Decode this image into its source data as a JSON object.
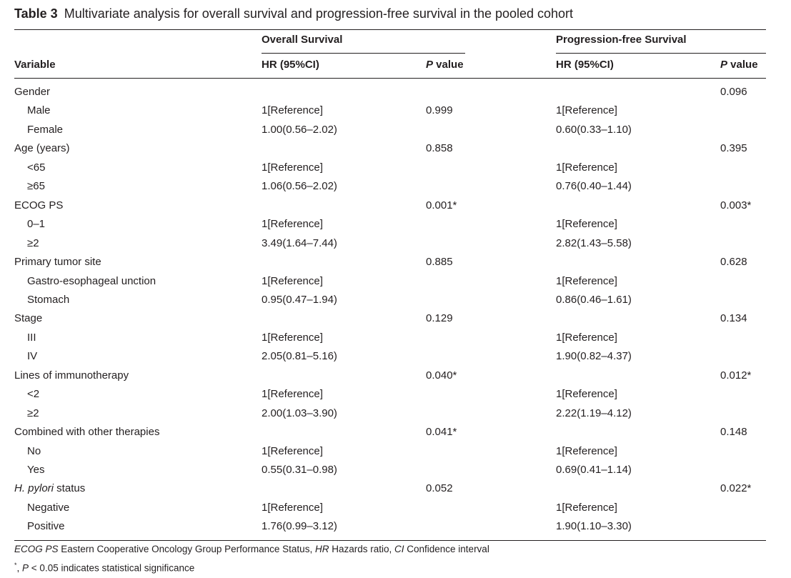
{
  "title": {
    "label": "Table 3",
    "caption": "Multivariate analysis for overall survival and progression-free survival in the pooled cohort"
  },
  "header": {
    "group_os": "Overall Survival",
    "group_pfs": "Progression-free Survival",
    "variable": "Variable",
    "hr_os": "HR (95%CI)",
    "p_italic": "P",
    "p_rest": " value",
    "hr_pfs": "HR (95%CI)"
  },
  "rows": [
    {
      "label": "Gender",
      "level": 0,
      "os_hr": "",
      "os_p": "",
      "pfs_hr": "",
      "pfs_p": "0.096"
    },
    {
      "label": "Male",
      "level": 1,
      "os_hr": "1[Reference]",
      "os_p": "0.999",
      "pfs_hr": "1[Reference]",
      "pfs_p": ""
    },
    {
      "label": "Female",
      "level": 1,
      "os_hr": "1.00(0.56–2.02)",
      "os_p": "",
      "pfs_hr": "0.60(0.33–1.10)",
      "pfs_p": ""
    },
    {
      "label": "Age (years)",
      "level": 0,
      "os_hr": "",
      "os_p": "0.858",
      "pfs_hr": "",
      "pfs_p": "0.395"
    },
    {
      "label": "<65",
      "level": 1,
      "os_hr": "1[Reference]",
      "os_p": "",
      "pfs_hr": "1[Reference]",
      "pfs_p": ""
    },
    {
      "label": "≥65",
      "level": 1,
      "os_hr": "1.06(0.56–2.02)",
      "os_p": "",
      "pfs_hr": "0.76(0.40–1.44)",
      "pfs_p": ""
    },
    {
      "label": "ECOG PS",
      "level": 0,
      "os_hr": "",
      "os_p": "0.001*",
      "pfs_hr": "",
      "pfs_p": "0.003*"
    },
    {
      "label": "0–1",
      "level": 1,
      "os_hr": "1[Reference]",
      "os_p": "",
      "pfs_hr": "1[Reference]",
      "pfs_p": ""
    },
    {
      "label": "≥2",
      "level": 1,
      "os_hr": "3.49(1.64–7.44)",
      "os_p": "",
      "pfs_hr": "2.82(1.43–5.58)",
      "pfs_p": ""
    },
    {
      "label": "Primary tumor site",
      "level": 0,
      "os_hr": "",
      "os_p": "0.885",
      "pfs_hr": "",
      "pfs_p": "0.628"
    },
    {
      "label": "Gastro-esophageal unction",
      "level": 1,
      "os_hr": "1[Reference]",
      "os_p": "",
      "pfs_hr": "1[Reference]",
      "pfs_p": ""
    },
    {
      "label": "Stomach",
      "level": 1,
      "os_hr": "0.95(0.47–1.94)",
      "os_p": "",
      "pfs_hr": "0.86(0.46–1.61)",
      "pfs_p": ""
    },
    {
      "label": "Stage",
      "level": 0,
      "os_hr": "",
      "os_p": "0.129",
      "pfs_hr": "",
      "pfs_p": "0.134"
    },
    {
      "label": "III",
      "level": 1,
      "os_hr": "1[Reference]",
      "os_p": "",
      "pfs_hr": "1[Reference]",
      "pfs_p": ""
    },
    {
      "label": "IV",
      "level": 1,
      "os_hr": "2.05(0.81–5.16)",
      "os_p": "",
      "pfs_hr": "1.90(0.82–4.37)",
      "pfs_p": ""
    },
    {
      "label": "Lines of immunotherapy",
      "level": 0,
      "os_hr": "",
      "os_p": "0.040*",
      "pfs_hr": "",
      "pfs_p": "0.012*"
    },
    {
      "label": "<2",
      "level": 1,
      "os_hr": "1[Reference]",
      "os_p": "",
      "pfs_hr": "1[Reference]",
      "pfs_p": ""
    },
    {
      "label": "≥2",
      "level": 1,
      "os_hr": "2.00(1.03–3.90)",
      "os_p": "",
      "pfs_hr": "2.22(1.19–4.12)",
      "pfs_p": ""
    },
    {
      "label": "Combined with other therapies",
      "level": 0,
      "os_hr": "",
      "os_p": "0.041*",
      "pfs_hr": "",
      "pfs_p": "0.148"
    },
    {
      "label": "No",
      "level": 1,
      "os_hr": "1[Reference]",
      "os_p": "",
      "pfs_hr": "1[Reference]",
      "pfs_p": ""
    },
    {
      "label": "Yes",
      "level": 1,
      "os_hr": "0.55(0.31–0.98)",
      "os_p": "",
      "pfs_hr": "0.69(0.41–1.14)",
      "pfs_p": ""
    },
    {
      "label": "H. pylori",
      "label_suffix": " status",
      "italic": true,
      "level": 0,
      "os_hr": "",
      "os_p": "0.052",
      "pfs_hr": "",
      "pfs_p": "0.022*"
    },
    {
      "label": "Negative",
      "level": 1,
      "os_hr": "1[Reference]",
      "os_p": "",
      "pfs_hr": "1[Reference]",
      "pfs_p": ""
    },
    {
      "label": "Positive",
      "level": 1,
      "os_hr": "1.76(0.99–3.12)",
      "os_p": "",
      "pfs_hr": "1.90(1.10–3.30)",
      "pfs_p": ""
    }
  ],
  "footnotes": {
    "ecog_abbr": "ECOG PS",
    "ecog_def": " Eastern Cooperative Oncology Group Performance Status, ",
    "hr_abbr": "HR",
    "hr_def": " Hazards ratio, ",
    "ci_abbr": "CI",
    "ci_def": " Confidence interval",
    "star": "*",
    "sig_sep": ", ",
    "sig_p": "P",
    "sig_text": " < 0.05 indicates statistical significance"
  }
}
